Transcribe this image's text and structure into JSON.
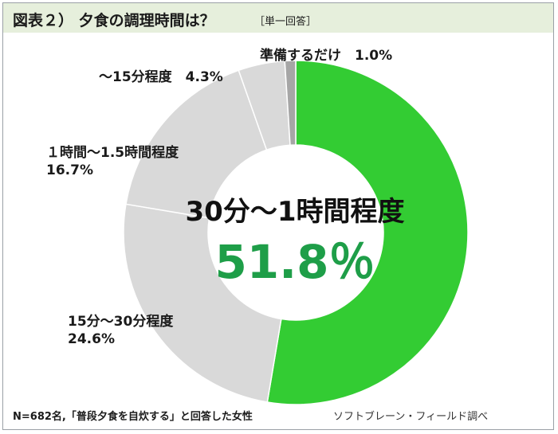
{
  "header": {
    "title": "図表２） 夕食の調理時間は？",
    "badge": "［単一回答］"
  },
  "colors": {
    "highlight_slice": "#33cc33",
    "other_slices": "#d9d9d9",
    "smallest_slice": "#a6a6a6",
    "center_value": "#1e9e48",
    "header_bg": "#e6efdc"
  },
  "chart_data": {
    "type": "pie",
    "style": "donut",
    "legend": "none",
    "categories": [
      "30分～1時間程度",
      "15分～30分程度",
      "１時間～1.5時間程度",
      "～15分程度",
      "準備するだけ"
    ],
    "values": [
      51.8,
      24.6,
      16.7,
      4.3,
      1.0
    ],
    "label_texts": [
      [
        "30分～1時間程度",
        "51.8％"
      ],
      [
        "15分～30分程度",
        "24.6%"
      ],
      [
        "１時間～1.5時間程度",
        "16.7%"
      ],
      [
        "～15分程度　4.3%"
      ],
      [
        "準備するだけ　1.0%"
      ]
    ]
  },
  "footer": {
    "note": "N=682名,「普段夕食を自炊する」と回答した女性",
    "source": "ソフトブレーン・フィールド調べ"
  }
}
